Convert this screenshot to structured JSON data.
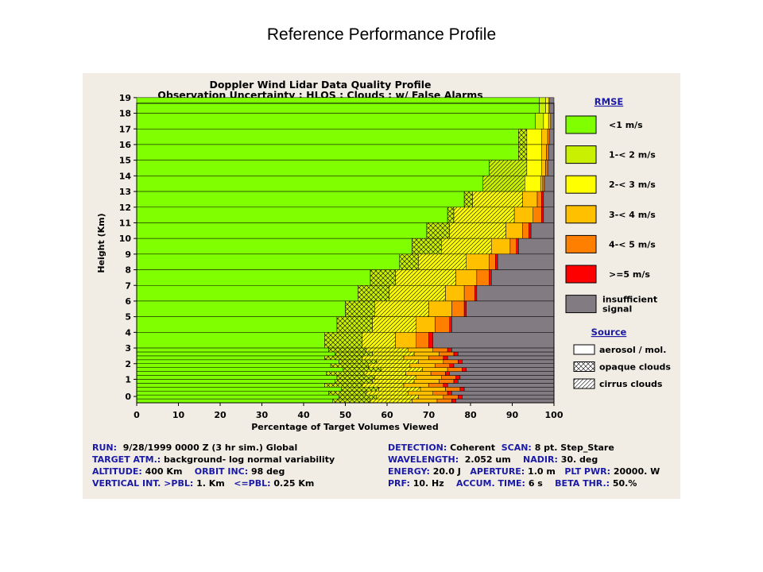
{
  "slide": {
    "title": "Reference Performance Profile"
  },
  "chart_data": {
    "type": "bar",
    "orientation": "horizontal",
    "stacked": true,
    "title": "Doppler Wind Lidar Data Quality Profile",
    "subtitle": "Observation Uncertainty ; HLOS ; Clouds ; w/ False Alarms",
    "xlabel": "Percentage of Target Volumes Viewed",
    "ylabel": "Height (Km)",
    "xlim": [
      0,
      100
    ],
    "x_ticks": [
      "0",
      "10",
      "20",
      "30",
      "40",
      "50",
      "60",
      "70",
      "80",
      "90",
      "100"
    ],
    "y_ticks": [
      "0",
      "1",
      "2",
      "3",
      "4",
      "5",
      "6",
      "7",
      "8",
      "9",
      "10",
      "11",
      "12",
      "13",
      "14",
      "15",
      "16",
      "17",
      "18",
      "19"
    ],
    "legend_rmse_title": "RMSE",
    "legend_rmse": [
      {
        "label": "<1 m/s",
        "color": "#7fff00"
      },
      {
        "label": "1-< 2 m/s",
        "color": "#c8f000"
      },
      {
        "label": "2-< 3 m/s",
        "color": "#ffff00"
      },
      {
        "label": "3-< 4 m/s",
        "color": "#ffc000"
      },
      {
        "label": "4-< 5 m/s",
        "color": "#ff8000"
      },
      {
        "label": ">=5 m/s",
        "color": "#ff0000"
      },
      {
        "label": "insufficient signal",
        "line1": "insufficient",
        "line2": "signal",
        "color": "#827c82"
      }
    ],
    "legend_source_title": "Source",
    "legend_source": [
      {
        "label": "aerosol / mol.",
        "pattern": "none"
      },
      {
        "label": "opaque clouds",
        "pattern": "cross"
      },
      {
        "label": "cirrus clouds",
        "pattern": "diag"
      }
    ],
    "levels_upper": [
      {
        "height": 19,
        "segments": [
          [
            96.5,
            "none"
          ],
          [
            1.5,
            "none"
          ],
          [
            0.7,
            "none"
          ],
          [
            0.3,
            "none"
          ],
          [
            0,
            "none"
          ],
          [
            0,
            "none"
          ],
          [
            1.0,
            "none"
          ]
        ]
      },
      {
        "height": 18,
        "segments": [
          [
            95.5,
            "none"
          ],
          [
            2,
            "none"
          ],
          [
            1.2,
            "none"
          ],
          [
            0.5,
            "none"
          ],
          [
            0,
            "none"
          ],
          [
            0,
            "none"
          ],
          [
            0.8,
            "none"
          ]
        ]
      },
      {
        "height": 17,
        "segments": [
          [
            91.5,
            "none"
          ],
          [
            2,
            "cross"
          ],
          [
            3.5,
            "none"
          ],
          [
            1.5,
            "none"
          ],
          [
            0.5,
            "none"
          ],
          [
            0,
            "none"
          ],
          [
            1.0,
            "none"
          ]
        ]
      },
      {
        "height": 16,
        "segments": [
          [
            91.5,
            "none"
          ],
          [
            2,
            "cross"
          ],
          [
            3.5,
            "none"
          ],
          [
            1.2,
            "none"
          ],
          [
            0.5,
            "none"
          ],
          [
            0,
            "none"
          ],
          [
            1.3,
            "none"
          ]
        ]
      },
      {
        "height": 15,
        "segments": [
          [
            84.5,
            "none"
          ],
          [
            9,
            "diag"
          ],
          [
            3.5,
            "none"
          ],
          [
            1.0,
            "none"
          ],
          [
            0.5,
            "none"
          ],
          [
            0,
            "none"
          ],
          [
            1.5,
            "none"
          ]
        ]
      },
      {
        "height": 14,
        "segments": [
          [
            83,
            "none"
          ],
          [
            10,
            "diag"
          ],
          [
            3.8,
            "none"
          ],
          [
            0.5,
            "none"
          ],
          [
            0.4,
            "none"
          ],
          [
            0,
            "none"
          ],
          [
            2.3,
            "none"
          ]
        ]
      },
      {
        "height": 13,
        "segments": [
          [
            78.5,
            "none"
          ],
          [
            2,
            "cross"
          ],
          [
            12,
            "diag"
          ],
          [
            3.5,
            "none"
          ],
          [
            1.0,
            "none"
          ],
          [
            0.5,
            "none"
          ],
          [
            2.5,
            "none"
          ]
        ]
      },
      {
        "height": 12,
        "segments": [
          [
            74.5,
            "none"
          ],
          [
            1.5,
            "cross"
          ],
          [
            14.5,
            "diag"
          ],
          [
            4.5,
            "none"
          ],
          [
            2.0,
            "none"
          ],
          [
            0.5,
            "none"
          ],
          [
            2.5,
            "none"
          ]
        ]
      },
      {
        "height": 11,
        "segments": [
          [
            69.5,
            "none"
          ],
          [
            5.5,
            "cross"
          ],
          [
            13.5,
            "diag"
          ],
          [
            4.0,
            "none"
          ],
          [
            1.5,
            "none"
          ],
          [
            0.5,
            "none"
          ],
          [
            5.5,
            "none"
          ]
        ]
      },
      {
        "height": 10,
        "segments": [
          [
            66,
            "none"
          ],
          [
            7,
            "cross"
          ],
          [
            12,
            "diag"
          ],
          [
            4.5,
            "none"
          ],
          [
            1.5,
            "none"
          ],
          [
            0.5,
            "none"
          ],
          [
            8.5,
            "none"
          ]
        ]
      },
      {
        "height": 9,
        "segments": [
          [
            63,
            "none"
          ],
          [
            4.5,
            "cross"
          ],
          [
            11.5,
            "diag"
          ],
          [
            5.5,
            "none"
          ],
          [
            1.5,
            "none"
          ],
          [
            0.5,
            "none"
          ],
          [
            13.5,
            "none"
          ]
        ]
      },
      {
        "height": 8,
        "segments": [
          [
            56,
            "none"
          ],
          [
            6,
            "cross"
          ],
          [
            14.5,
            "diag"
          ],
          [
            5.0,
            "none"
          ],
          [
            3.0,
            "none"
          ],
          [
            0.5,
            "none"
          ],
          [
            15,
            "none"
          ]
        ]
      },
      {
        "height": 7,
        "segments": [
          [
            53,
            "none"
          ],
          [
            7.5,
            "cross"
          ],
          [
            13.5,
            "diag"
          ],
          [
            4.5,
            "none"
          ],
          [
            2.5,
            "none"
          ],
          [
            0.5,
            "none"
          ],
          [
            18.5,
            "none"
          ]
        ]
      },
      {
        "height": 6,
        "segments": [
          [
            50,
            "none"
          ],
          [
            7,
            "cross"
          ],
          [
            13,
            "diag"
          ],
          [
            5.5,
            "none"
          ],
          [
            3.0,
            "none"
          ],
          [
            0.5,
            "none"
          ],
          [
            21,
            "none"
          ]
        ]
      },
      {
        "height": 5,
        "segments": [
          [
            48,
            "none"
          ],
          [
            8.5,
            "cross"
          ],
          [
            10.5,
            "diag"
          ],
          [
            4.5,
            "none"
          ],
          [
            3.5,
            "none"
          ],
          [
            0.5,
            "none"
          ],
          [
            24.5,
            "none"
          ]
        ]
      },
      {
        "height": 4,
        "segments": [
          [
            45,
            "none"
          ],
          [
            9,
            "cross"
          ],
          [
            8,
            "diag"
          ],
          [
            5.0,
            "none"
          ],
          [
            3.0,
            "none"
          ],
          [
            1.0,
            "none"
          ],
          [
            29,
            "none"
          ]
        ]
      }
    ],
    "levels_lower": {
      "height_range": [
        0,
        3
      ],
      "segments": [
        [
          47,
          "none"
        ],
        [
          9,
          "cross"
        ],
        [
          10,
          "diag"
        ],
        [
          6,
          "none"
        ],
        [
          3.5,
          "none"
        ],
        [
          1.0,
          "none"
        ],
        [
          23.5,
          "none"
        ]
      ]
    }
  },
  "run_info": {
    "left": [
      {
        "key": "RUN:",
        "value": "9/28/1999 0000 Z (3 hr sim.) Global"
      },
      {
        "key": "TARGET ATM.:",
        "value": "background- log normal variability"
      },
      {
        "key": "ALTITUDE:",
        "value": "400 Km",
        "key2": "ORBIT INC:",
        "value2": "98 deg"
      },
      {
        "key": "VERTICAL INT. >PBL:",
        "value": "1. Km",
        "key2": "<=PBL:",
        "value2": "0.25 Km"
      }
    ],
    "right": [
      {
        "key": "DETECTION:",
        "value": "Coherent",
        "key2": "SCAN:",
        "value2": "8 pt. Step_Stare"
      },
      {
        "key": "WAVELENGTH:",
        "value": "2.052 um",
        "key2": "NADIR:",
        "value2": "30. deg"
      },
      {
        "key": "ENERGY:",
        "value": "20.0 J",
        "key2": "APERTURE:",
        "value2": "1.0 m",
        "key3": "PLT PWR:",
        "value3": "20000. W"
      },
      {
        "key": "PRF:",
        "value": "10. Hz",
        "key2": "ACCUM. TIME:",
        "value2": "6 s",
        "key3": "BETA THR.:",
        "value3": "50.%"
      }
    ]
  }
}
